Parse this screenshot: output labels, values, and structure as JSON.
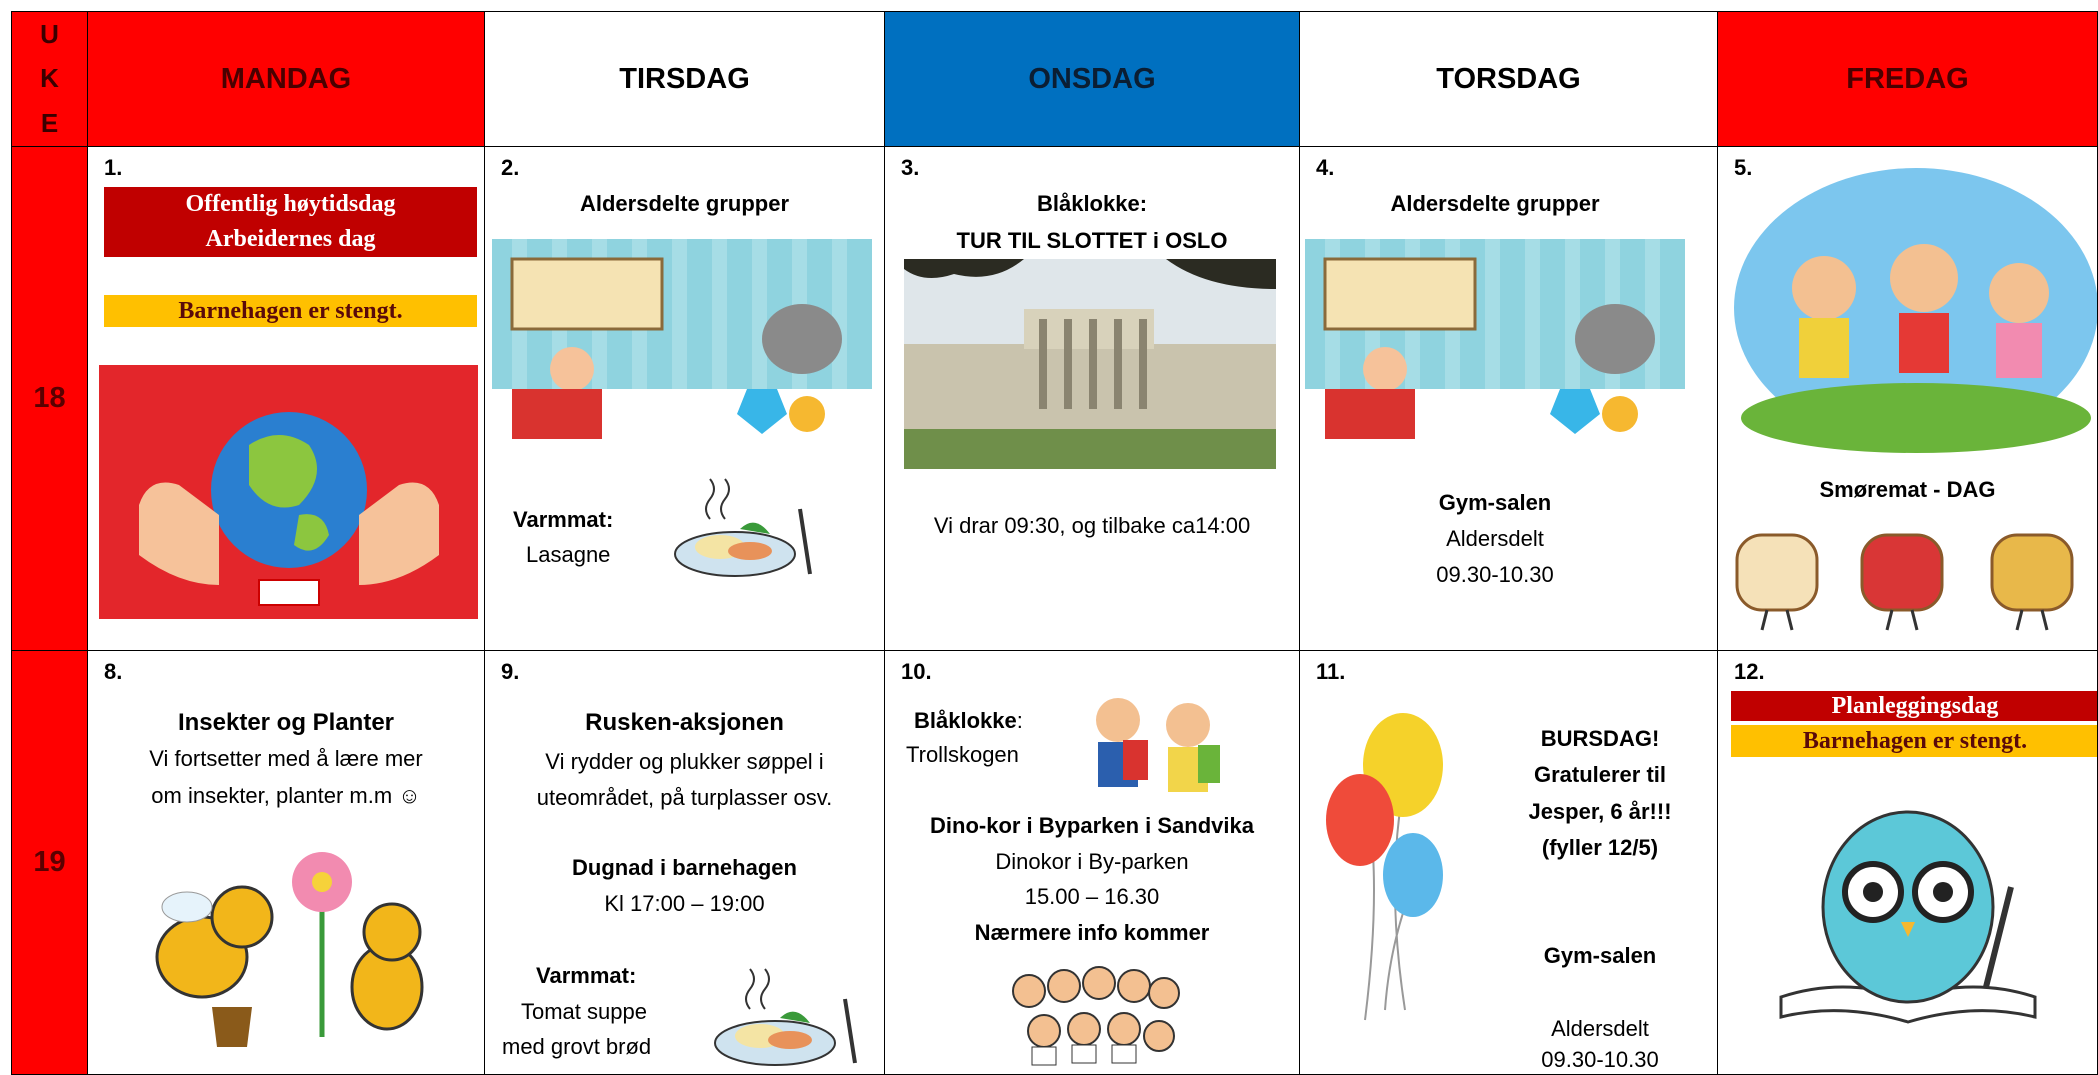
{
  "header": {
    "week_letters": [
      "U",
      "K",
      "E"
    ],
    "days": [
      "MANDAG",
      "TIRSDAG",
      "ONSDAG",
      "TORSDAG",
      "FREDAG"
    ]
  },
  "weeks": [
    {
      "number": "18",
      "days": [
        {
          "date": "1.",
          "holiday": [
            "Offentlig høytidsdag",
            "Arbeidernes dag"
          ],
          "notice": "Barnehagen er stengt."
        },
        {
          "date": "2.",
          "heading": "Aldersdelte grupper",
          "meal_label": "Varmmat:",
          "meal": [
            "Lasagne"
          ]
        },
        {
          "date": "3.",
          "heading": [
            "Blåklokke:",
            "TUR TIL SLOTTET i OSLO"
          ],
          "text": [
            "Vi drar 09:30, og tilbake ca14:00"
          ]
        },
        {
          "date": "4.",
          "heading": "Aldersdelte grupper",
          "place": "Gym-salen",
          "text": [
            "Aldersdelt",
            "09.30-10.30"
          ]
        },
        {
          "date": "5.",
          "heading": "Smøremat - DAG"
        }
      ]
    },
    {
      "number": "19",
      "days": [
        {
          "date": "8.",
          "heading": "Insekter og Planter",
          "text": [
            "Vi fortsetter med å lære mer",
            "om insekter, planter m.m ☺"
          ]
        },
        {
          "date": "9.",
          "heading": "Rusken-aksjonen",
          "text": [
            "Vi rydder og plukker søppel i",
            "uteområdet, på turplasser osv."
          ],
          "event": "Dugnad i barnehagen",
          "event_time": "Kl 17:00 – 19:00",
          "meal_label": "Varmmat:",
          "meal": [
            "Tomat suppe",
            "med grovt brød"
          ]
        },
        {
          "date": "10.",
          "group": "Blåklokke",
          "group_suffix": ":",
          "place": "Trollskogen",
          "event": "Dino-kor i Byparken i Sandvika",
          "text": [
            "Dinokor i By-parken",
            "15.00 – 16.30"
          ],
          "note": "Nærmere info kommer"
        },
        {
          "date": "11.",
          "heading": [
            "BURSDAG!",
            "Gratulerer til",
            "Jesper, 6 år!!!",
            "(fyller 12/5)"
          ],
          "place": "Gym-salen",
          "text": [
            "Aldersdelt",
            "09.30-10.30"
          ]
        },
        {
          "date": "12.",
          "holiday": [
            "Planleggingsdag"
          ],
          "notice": "Barnehagen er stengt."
        }
      ]
    }
  ]
}
